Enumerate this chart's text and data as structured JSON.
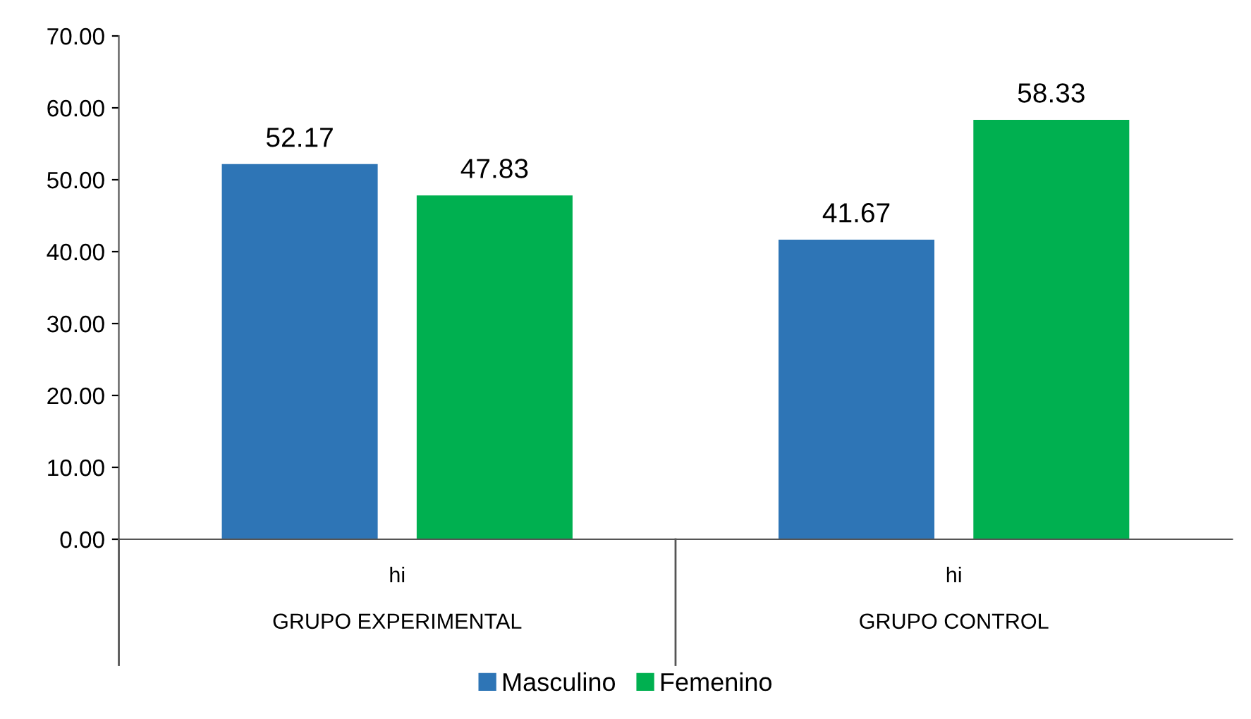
{
  "chart_data": {
    "type": "bar",
    "categories": [
      "hi\n\nGRUPO EXPERIMENTAL",
      "hi\n\nGRUPO CONTROL"
    ],
    "series": [
      {
        "name": "Masculino",
        "color": "#2e75b6",
        "values": [
          52.17,
          41.67
        ]
      },
      {
        "name": "Femenino",
        "color": "#00b050",
        "values": [
          47.83,
          58.33
        ]
      }
    ],
    "ylim": [
      0,
      70
    ],
    "yticks": [
      {
        "value": 0,
        "label": "0.00"
      },
      {
        "value": 10,
        "label": "10.00"
      },
      {
        "value": 20,
        "label": "20.00"
      },
      {
        "value": 30,
        "label": "30.00"
      },
      {
        "value": 40,
        "label": "40.00"
      },
      {
        "value": 50,
        "label": "50.00"
      },
      {
        "value": 60,
        "label": "60.00"
      },
      {
        "value": 70,
        "label": "70.00"
      }
    ],
    "data_labels": true,
    "legend": "bottom",
    "grid": false
  }
}
